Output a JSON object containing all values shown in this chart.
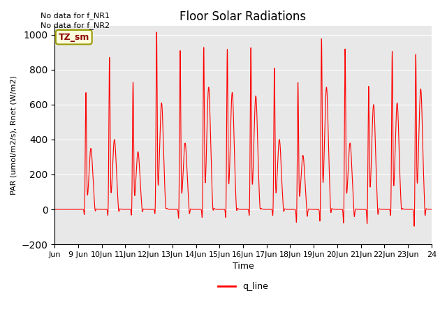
{
  "title": "Floor Solar Radiations",
  "xlabel": "Time",
  "ylabel": "PAR (umol/m2/s), Rnet (W/m2)",
  "ylim": [
    -200,
    1050
  ],
  "yticks": [
    -200,
    0,
    200,
    400,
    600,
    800,
    1000
  ],
  "total_days": 16,
  "text_no_data1": "No data for f_NR1",
  "text_no_data2": "No data for f_NR2",
  "legend_label": "q_line",
  "legend_color": "red",
  "tz_label": "TZ_sm",
  "line_color": "red",
  "bg_color": "#e8e8e8",
  "xtick_positions": [
    0,
    1,
    2,
    3,
    4,
    5,
    6,
    7,
    8,
    9,
    10,
    11,
    12,
    13,
    14,
    15,
    16
  ],
  "xtick_labels": [
    "Jun",
    "9 Jun",
    "10Jun",
    "11Jun",
    "12Jun",
    "13Jun",
    "14Jun",
    "15Jun",
    "16Jun",
    "17Jun",
    "18Jun",
    "19Jun",
    "20Jun",
    "21Jun",
    "22Jun",
    "23Jun",
    "24"
  ],
  "day_peak_heights": [
    0,
    660,
    860,
    720,
    1000,
    900,
    910,
    900,
    910,
    800,
    720,
    960,
    910,
    690,
    890,
    870,
    0
  ],
  "day_second_peaks": [
    0,
    350,
    400,
    330,
    610,
    380,
    700,
    670,
    650,
    400,
    310,
    700,
    380,
    600,
    610,
    690,
    0
  ],
  "day_troughs": [
    0,
    -50,
    -60,
    -55,
    -50,
    -80,
    -75,
    -75,
    -60,
    -60,
    -100,
    -100,
    -110,
    -110,
    -60,
    -130,
    0
  ]
}
